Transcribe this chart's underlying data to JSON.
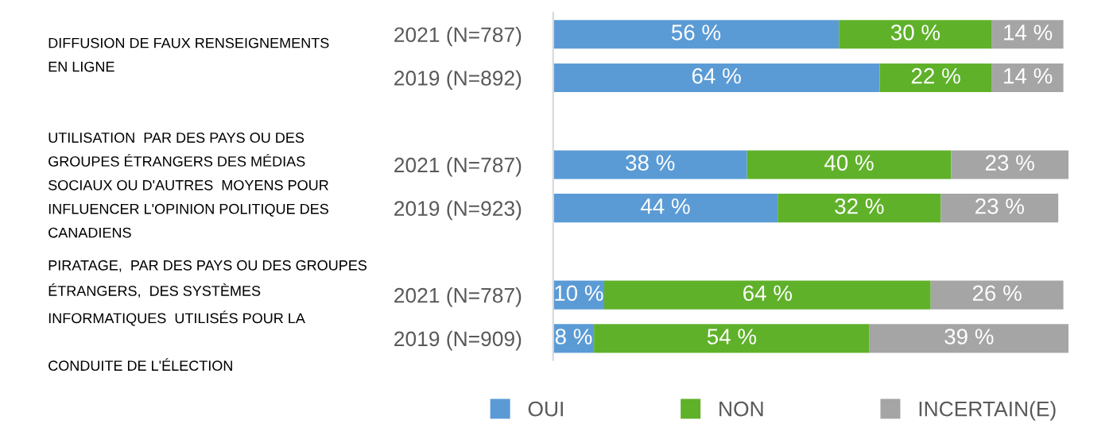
{
  "chart_data": {
    "type": "bar",
    "orientation": "horizontal",
    "stacked": true,
    "categories": [
      "2021 (N=787)",
      "2019 (N=892)",
      null,
      "2021 (N=787)",
      "2019 (N=923)",
      null,
      "2021 (N=787)",
      "2019 (N=909)"
    ],
    "series": [
      {
        "name": "OUI",
        "color": "#5b9bd5",
        "values": [
          56,
          64,
          null,
          38,
          44,
          null,
          10,
          8
        ],
        "value_labels": [
          "56 %",
          "64 %",
          null,
          "38 %",
          "44 %",
          null,
          "10 %",
          "8 %"
        ]
      },
      {
        "name": "NON",
        "color": "#5fb12a",
        "values": [
          30,
          22,
          null,
          40,
          32,
          null,
          64,
          54
        ],
        "value_labels": [
          "30 %",
          "22 %",
          null,
          "40 %",
          "32 %",
          null,
          "64 %",
          "54 %"
        ]
      },
      {
        "name": "INCERTAIN(E)",
        "color": "#a5a5a5",
        "values": [
          14,
          14,
          null,
          23,
          23,
          null,
          26,
          39
        ],
        "value_labels": [
          "14 %",
          "14 %",
          null,
          "23 %",
          "23 %",
          null,
          "26 %",
          "39 %"
        ]
      }
    ],
    "xlim": [
      0,
      101
    ],
    "tick_labels": "y",
    "grid": false,
    "legend": "bottom",
    "annotations": [
      "DIFFUSION DE FAUX RENSEIGNEMENTS\nEN LIGNE",
      "UTILISATION  PAR DES PAYS OU DES\nGROUPES ÉTRANGERS DES MÉDIAS\nSOCIAUX OU D'AUTRES  MOYENS POUR\nINFLUENCER L'OPINION POLITIQUE DES\nCANADIENS",
      "PIRATAGE,  PAR DES PAYS OU DES GROUPES\nÉTRANGERS,  DES SYSTÈMES\nINFORMATIQUES  UTILISÉS POUR LA\n\nCONDUITE DE L'ÉLECTION"
    ]
  }
}
